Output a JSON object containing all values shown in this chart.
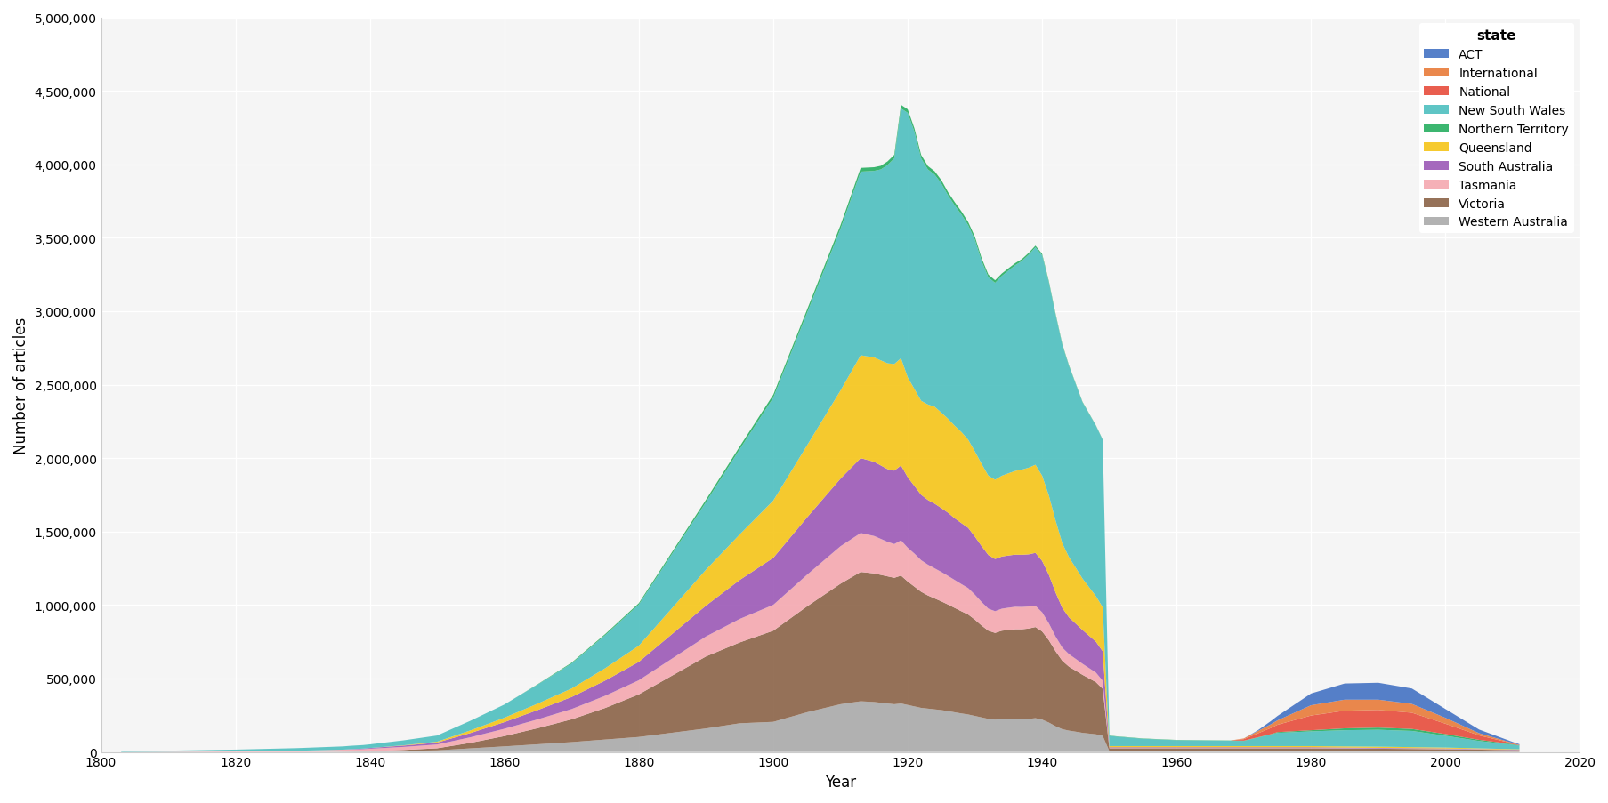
{
  "xlabel": "Year",
  "ylabel": "Number of articles",
  "legend_title": "state",
  "xlim": [
    1800,
    2020
  ],
  "ylim": [
    0,
    5000000
  ],
  "yticks": [
    0,
    500000,
    1000000,
    1500000,
    2000000,
    2500000,
    3000000,
    3500000,
    4000000,
    4500000,
    5000000
  ],
  "xticks": [
    1800,
    1820,
    1840,
    1860,
    1880,
    1900,
    1920,
    1940,
    1960,
    1980,
    2000,
    2020
  ],
  "colors": {
    "Western Australia": "#aaaaaa",
    "Victoria": "#8B6347",
    "Tasmania": "#F4A8B0",
    "South Australia": "#9B59B6",
    "Queensland": "#F5C518",
    "New South Wales": "#4DBFBF",
    "Northern Territory": "#27AE60",
    "National": "#E74C3C",
    "International": "#E87B3A",
    "ACT": "#4472C4"
  },
  "background_color": "#f5f5f5",
  "grid_color": "#ffffff"
}
